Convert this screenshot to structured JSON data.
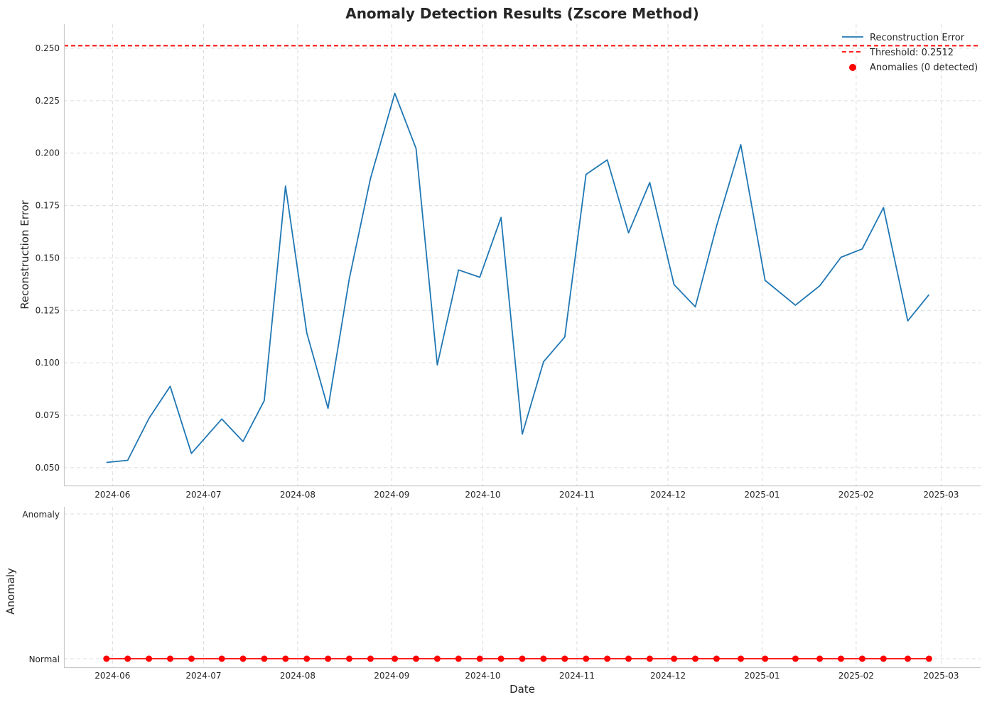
{
  "chart_data": [
    {
      "type": "line",
      "title": "Anomaly Detection Results (Zscore Method)",
      "xlabel": "",
      "ylabel": "Reconstruction Error",
      "ylim": [
        0.0415,
        0.2615
      ],
      "xlim": [
        "2024-05-16",
        "2025-03-14"
      ],
      "yticks": [
        "0.050",
        "0.075",
        "0.100",
        "0.125",
        "0.150",
        "0.175",
        "0.200",
        "0.225",
        "0.250"
      ],
      "xticks": [
        "2024-06",
        "2024-07",
        "2024-08",
        "2024-09",
        "2024-10",
        "2024-11",
        "2024-12",
        "2025-01",
        "2025-02",
        "2025-03"
      ],
      "grid": true,
      "legend_position": "top-right",
      "series": [
        {
          "name": "Reconstruction Error",
          "color": "#1f77b4",
          "x": [
            "2024-05-30",
            "2024-06-06",
            "2024-06-13",
            "2024-06-20",
            "2024-06-27",
            "2024-07-07",
            "2024-07-14",
            "2024-07-21",
            "2024-07-28",
            "2024-08-04",
            "2024-08-11",
            "2024-08-18",
            "2024-08-25",
            "2024-09-02",
            "2024-09-09",
            "2024-09-16",
            "2024-09-23",
            "2024-09-30",
            "2024-10-07",
            "2024-10-14",
            "2024-10-21",
            "2024-10-28",
            "2024-11-04",
            "2024-11-11",
            "2024-11-18",
            "2024-11-25",
            "2024-12-03",
            "2024-12-10",
            "2024-12-17",
            "2024-12-25",
            "2025-01-02",
            "2025-01-12",
            "2025-01-20",
            "2025-01-27",
            "2025-02-03",
            "2025-02-10",
            "2025-02-18",
            "2025-02-25"
          ],
          "values": [
            0.0525,
            0.0535,
            0.0735,
            0.0888,
            0.0568,
            0.0732,
            0.0625,
            0.082,
            0.1843,
            0.1143,
            0.0783,
            0.14,
            0.188,
            0.2285,
            0.2022,
            0.099,
            0.1443,
            0.1408,
            0.1693,
            0.066,
            0.1005,
            0.1123,
            0.1898,
            0.1968,
            0.162,
            0.186,
            0.1373,
            0.1267,
            0.1652,
            0.204,
            0.1393,
            0.1275,
            0.1367,
            0.1503,
            0.1543,
            0.174,
            0.12,
            0.1325
          ]
        },
        {
          "name": "Threshold: 0.2512",
          "color": "#ff0000",
          "style": "dashed",
          "value": 0.2512
        },
        {
          "name": "Anomalies (0 detected)",
          "color": "#ff0000",
          "marker": "circle",
          "values": []
        }
      ]
    },
    {
      "type": "line",
      "title": "",
      "xlabel": "Date",
      "ylabel": "Anomaly",
      "yticks": [
        "Normal",
        "Anomaly"
      ],
      "xticks": [
        "2024-06",
        "2024-07",
        "2024-08",
        "2024-09",
        "2024-10",
        "2024-11",
        "2024-12",
        "2025-01",
        "2025-02",
        "2025-03"
      ],
      "grid": true,
      "series": [
        {
          "name": "",
          "color": "#ff0000",
          "marker": "circle",
          "values_note_free": true,
          "values": [
            0,
            0,
            0,
            0,
            0,
            0,
            0,
            0,
            0,
            0,
            0,
            0,
            0,
            0,
            0,
            0,
            0,
            0,
            0,
            0,
            0,
            0,
            0,
            0,
            0,
            0,
            0,
            0,
            0,
            0,
            0,
            0,
            0,
            0,
            0,
            0,
            0,
            0
          ]
        }
      ]
    }
  ]
}
